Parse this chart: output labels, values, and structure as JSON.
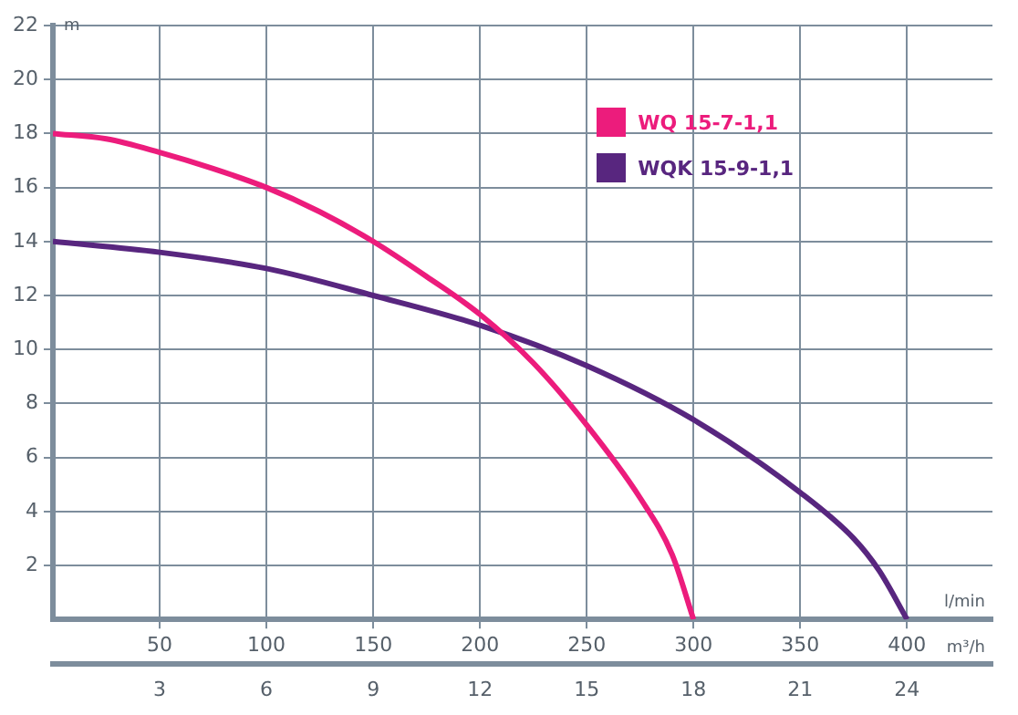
{
  "chart_data": {
    "type": "line",
    "xlabel": "l/min",
    "x2label": "m³/h",
    "ylabel": "m",
    "xlim": [
      0,
      440
    ],
    "xticks": [
      50,
      100,
      150,
      200,
      250,
      300,
      350,
      400
    ],
    "x2lim": [
      0,
      26.4
    ],
    "x2ticks": [
      3,
      6,
      9,
      12,
      15,
      18,
      21,
      24
    ],
    "ylim": [
      0,
      22
    ],
    "yticks": [
      2,
      4,
      6,
      8,
      10,
      12,
      14,
      16,
      18,
      20,
      22
    ],
    "grid": true,
    "legend": "top right",
    "marker": "none",
    "line_style": "solid",
    "series": [
      {
        "name": "WQ 15-7-1,1",
        "color": "#ec1c7c",
        "x": [
          0,
          25,
          50,
          75,
          100,
          125,
          150,
          175,
          200,
          225,
          250,
          275,
          290,
          300
        ],
        "values": [
          18,
          17.8,
          17.3,
          16.7,
          16,
          15.1,
          14,
          12.7,
          11.3,
          9.5,
          7.2,
          4.5,
          2.4,
          0
        ]
      },
      {
        "name": "WQK 15-9-1,1",
        "color": "#58267f",
        "x": [
          0,
          50,
          100,
          150,
          200,
          250,
          300,
          350,
          375,
          387,
          400
        ],
        "values": [
          14,
          13.6,
          13,
          12,
          10.9,
          9.4,
          7.4,
          4.7,
          3.0,
          1.8,
          0
        ]
      }
    ]
  }
}
